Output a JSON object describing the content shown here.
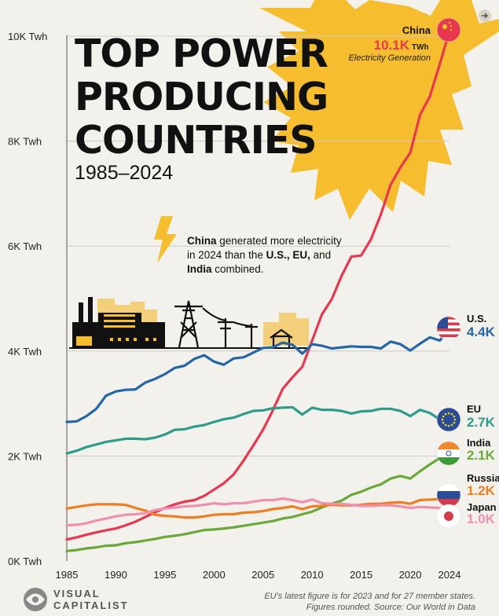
{
  "header": {
    "title_lines": [
      "TOP POWER",
      "PRODUCING",
      "COUNTRIES"
    ],
    "subtitle": "1985–2024"
  },
  "annotation": {
    "parts": [
      {
        "text": "China",
        "bold": true
      },
      {
        "text": " generated more electricity",
        "bold": false
      },
      {
        "br": true
      },
      {
        "text": "in 2024 than the ",
        "bold": false
      },
      {
        "text": "U.S., EU,",
        "bold": true
      },
      {
        "text": " and",
        "bold": false
      },
      {
        "br": true
      },
      {
        "text": "India",
        "bold": true
      },
      {
        "text": " combined.",
        "bold": false
      }
    ]
  },
  "china_label": {
    "country": "China",
    "value": "10.1K",
    "unit": "TWh",
    "caption": "Electricity Generation"
  },
  "footnote": {
    "line1": "EU's latest figure is for 2023 and for 27 member states.",
    "line2": "Figures rounded. Source: Our World in Data"
  },
  "brand": {
    "line1": "VISUAL",
    "line2": "CAPITALIST"
  },
  "chart_data": {
    "type": "line",
    "x_ticks": [
      1985,
      1990,
      1995,
      2000,
      2005,
      2010,
      2015,
      2020,
      2024
    ],
    "xlim": [
      1985,
      2024
    ],
    "ylim": [
      0,
      10000
    ],
    "y_ticks": [
      {
        "value": 0,
        "label": "0K Twh"
      },
      {
        "value": 2000,
        "label": "2K Twh"
      },
      {
        "value": 4000,
        "label": "4K Twh"
      },
      {
        "value": 6000,
        "label": "6K Twh"
      },
      {
        "value": 8000,
        "label": "8K Twh"
      },
      {
        "value": 10000,
        "label": "10K Twh"
      }
    ],
    "grid": true,
    "series": [
      {
        "name": "China",
        "end_label": "10.1K TWh",
        "color": "#e8374f",
        "points": [
          [
            1985,
            410
          ],
          [
            1986,
            450
          ],
          [
            1987,
            500
          ],
          [
            1988,
            545
          ],
          [
            1989,
            585
          ],
          [
            1990,
            620
          ],
          [
            1991,
            680
          ],
          [
            1992,
            750
          ],
          [
            1993,
            840
          ],
          [
            1994,
            930
          ],
          [
            1995,
            1010
          ],
          [
            1996,
            1080
          ],
          [
            1997,
            1130
          ],
          [
            1998,
            1160
          ],
          [
            1999,
            1240
          ],
          [
            2000,
            1360
          ],
          [
            2001,
            1480
          ],
          [
            2002,
            1650
          ],
          [
            2003,
            1910
          ],
          [
            2004,
            2200
          ],
          [
            2005,
            2500
          ],
          [
            2006,
            2870
          ],
          [
            2007,
            3280
          ],
          [
            2008,
            3500
          ],
          [
            2009,
            3700
          ],
          [
            2010,
            4200
          ],
          [
            2011,
            4700
          ],
          [
            2012,
            4990
          ],
          [
            2013,
            5430
          ],
          [
            2014,
            5800
          ],
          [
            2015,
            5820
          ],
          [
            2016,
            6130
          ],
          [
            2017,
            6600
          ],
          [
            2018,
            7170
          ],
          [
            2019,
            7500
          ],
          [
            2020,
            7780
          ],
          [
            2021,
            8500
          ],
          [
            2022,
            8850
          ],
          [
            2023,
            9460
          ],
          [
            2024,
            10100
          ]
        ]
      },
      {
        "name": "U.S.",
        "end_label": "4.4K",
        "color": "#2566a8",
        "points": [
          [
            1985,
            2650
          ],
          [
            1986,
            2660
          ],
          [
            1987,
            2760
          ],
          [
            1988,
            2900
          ],
          [
            1989,
            3150
          ],
          [
            1990,
            3230
          ],
          [
            1991,
            3260
          ],
          [
            1992,
            3270
          ],
          [
            1993,
            3400
          ],
          [
            1994,
            3470
          ],
          [
            1995,
            3560
          ],
          [
            1996,
            3680
          ],
          [
            1997,
            3720
          ],
          [
            1998,
            3850
          ],
          [
            1999,
            3920
          ],
          [
            2000,
            3800
          ],
          [
            2001,
            3740
          ],
          [
            2002,
            3860
          ],
          [
            2003,
            3880
          ],
          [
            2004,
            3970
          ],
          [
            2005,
            4060
          ],
          [
            2006,
            4070
          ],
          [
            2007,
            4160
          ],
          [
            2008,
            4120
          ],
          [
            2009,
            3950
          ],
          [
            2010,
            4130
          ],
          [
            2011,
            4100
          ],
          [
            2012,
            4050
          ],
          [
            2013,
            4070
          ],
          [
            2014,
            4090
          ],
          [
            2015,
            4080
          ],
          [
            2016,
            4080
          ],
          [
            2017,
            4050
          ],
          [
            2018,
            4180
          ],
          [
            2019,
            4130
          ],
          [
            2020,
            4010
          ],
          [
            2021,
            4140
          ],
          [
            2022,
            4260
          ],
          [
            2023,
            4200
          ],
          [
            2024,
            4400
          ]
        ]
      },
      {
        "name": "EU",
        "end_label": "2.7K",
        "color": "#2d9c8a",
        "points": [
          [
            1985,
            2050
          ],
          [
            1986,
            2100
          ],
          [
            1987,
            2170
          ],
          [
            1988,
            2220
          ],
          [
            1989,
            2270
          ],
          [
            1990,
            2300
          ],
          [
            1991,
            2330
          ],
          [
            1992,
            2330
          ],
          [
            1993,
            2320
          ],
          [
            1994,
            2350
          ],
          [
            1995,
            2410
          ],
          [
            1996,
            2500
          ],
          [
            1997,
            2510
          ],
          [
            1998,
            2560
          ],
          [
            1999,
            2590
          ],
          [
            2000,
            2650
          ],
          [
            2001,
            2700
          ],
          [
            2002,
            2730
          ],
          [
            2003,
            2800
          ],
          [
            2004,
            2860
          ],
          [
            2005,
            2870
          ],
          [
            2006,
            2910
          ],
          [
            2007,
            2920
          ],
          [
            2008,
            2930
          ],
          [
            2009,
            2790
          ],
          [
            2010,
            2920
          ],
          [
            2011,
            2880
          ],
          [
            2012,
            2880
          ],
          [
            2013,
            2860
          ],
          [
            2014,
            2810
          ],
          [
            2015,
            2850
          ],
          [
            2016,
            2860
          ],
          [
            2017,
            2900
          ],
          [
            2018,
            2900
          ],
          [
            2019,
            2860
          ],
          [
            2020,
            2760
          ],
          [
            2021,
            2880
          ],
          [
            2022,
            2820
          ],
          [
            2023,
            2700
          ]
        ]
      },
      {
        "name": "India",
        "end_label": "2.1K",
        "color": "#6aa83a",
        "points": [
          [
            1985,
            190
          ],
          [
            1986,
            210
          ],
          [
            1987,
            240
          ],
          [
            1988,
            260
          ],
          [
            1989,
            290
          ],
          [
            1990,
            300
          ],
          [
            1991,
            340
          ],
          [
            1992,
            360
          ],
          [
            1993,
            390
          ],
          [
            1994,
            420
          ],
          [
            1995,
            460
          ],
          [
            1996,
            480
          ],
          [
            1997,
            510
          ],
          [
            1998,
            550
          ],
          [
            1999,
            590
          ],
          [
            2000,
            600
          ],
          [
            2001,
            620
          ],
          [
            2002,
            640
          ],
          [
            2003,
            670
          ],
          [
            2004,
            700
          ],
          [
            2005,
            730
          ],
          [
            2006,
            760
          ],
          [
            2007,
            810
          ],
          [
            2008,
            840
          ],
          [
            2009,
            890
          ],
          [
            2010,
            940
          ],
          [
            2011,
            1020
          ],
          [
            2012,
            1090
          ],
          [
            2013,
            1150
          ],
          [
            2014,
            1260
          ],
          [
            2015,
            1320
          ],
          [
            2016,
            1400
          ],
          [
            2017,
            1460
          ],
          [
            2018,
            1570
          ],
          [
            2019,
            1620
          ],
          [
            2020,
            1570
          ],
          [
            2021,
            1710
          ],
          [
            2022,
            1840
          ],
          [
            2023,
            1960
          ],
          [
            2024,
            2100
          ]
        ]
      },
      {
        "name": "Russia",
        "end_label": "1.2K",
        "color": "#ef7d22",
        "points": [
          [
            1985,
            1000
          ],
          [
            1986,
            1030
          ],
          [
            1987,
            1060
          ],
          [
            1988,
            1080
          ],
          [
            1989,
            1080
          ],
          [
            1990,
            1080
          ],
          [
            1991,
            1070
          ],
          [
            1992,
            1010
          ],
          [
            1993,
            960
          ],
          [
            1994,
            880
          ],
          [
            1995,
            860
          ],
          [
            1996,
            850
          ],
          [
            1997,
            830
          ],
          [
            1998,
            830
          ],
          [
            1999,
            850
          ],
          [
            2000,
            880
          ],
          [
            2001,
            890
          ],
          [
            2002,
            890
          ],
          [
            2003,
            920
          ],
          [
            2004,
            930
          ],
          [
            2005,
            950
          ],
          [
            2006,
            990
          ],
          [
            2007,
            1010
          ],
          [
            2008,
            1040
          ],
          [
            2009,
            990
          ],
          [
            2010,
            1040
          ],
          [
            2011,
            1050
          ],
          [
            2012,
            1070
          ],
          [
            2013,
            1060
          ],
          [
            2014,
            1060
          ],
          [
            2015,
            1070
          ],
          [
            2016,
            1090
          ],
          [
            2017,
            1090
          ],
          [
            2018,
            1110
          ],
          [
            2019,
            1120
          ],
          [
            2020,
            1090
          ],
          [
            2021,
            1160
          ],
          [
            2022,
            1170
          ],
          [
            2023,
            1180
          ],
          [
            2024,
            1200
          ]
        ]
      },
      {
        "name": "Japan",
        "end_label": "1.0K",
        "color": "#f08fb0",
        "points": [
          [
            1985,
            680
          ],
          [
            1986,
            690
          ],
          [
            1987,
            720
          ],
          [
            1988,
            770
          ],
          [
            1989,
            810
          ],
          [
            1990,
            850
          ],
          [
            1991,
            880
          ],
          [
            1992,
            890
          ],
          [
            1993,
            910
          ],
          [
            1994,
            970
          ],
          [
            1995,
            1000
          ],
          [
            1996,
            1020
          ],
          [
            1997,
            1040
          ],
          [
            1998,
            1050
          ],
          [
            1999,
            1070
          ],
          [
            2000,
            1100
          ],
          [
            2001,
            1080
          ],
          [
            2002,
            1100
          ],
          [
            2003,
            1100
          ],
          [
            2004,
            1130
          ],
          [
            2005,
            1160
          ],
          [
            2006,
            1160
          ],
          [
            2007,
            1190
          ],
          [
            2008,
            1160
          ],
          [
            2009,
            1120
          ],
          [
            2010,
            1170
          ],
          [
            2011,
            1100
          ],
          [
            2012,
            1090
          ],
          [
            2013,
            1090
          ],
          [
            2014,
            1070
          ],
          [
            2015,
            1050
          ],
          [
            2016,
            1050
          ],
          [
            2017,
            1060
          ],
          [
            2018,
            1060
          ],
          [
            2019,
            1040
          ],
          [
            2020,
            1010
          ],
          [
            2021,
            1030
          ],
          [
            2022,
            1020
          ],
          [
            2023,
            1010
          ],
          [
            2024,
            1000
          ]
        ]
      }
    ]
  },
  "flags": {
    "China": "china-flag-icon",
    "U.S.": "us-flag-icon",
    "EU": "eu-flag-icon",
    "India": "india-flag-icon",
    "Russia": "russia-flag-icon",
    "Japan": "japan-flag-icon"
  }
}
